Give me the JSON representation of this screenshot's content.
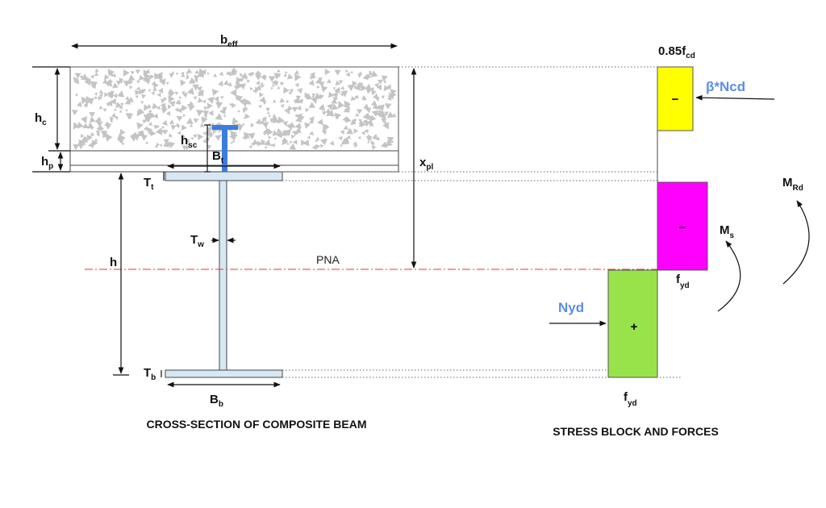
{
  "colors": {
    "concrete_block": "#ffff00",
    "steel_compression_block": "#ff00ff",
    "steel_tension_block": "#98e34a",
    "shear_connector": "#3b7ddd",
    "steel_section": "#d6e8f4",
    "pna_line": "#e53935",
    "force_labels": "#5b8ee6"
  },
  "cross_section": {
    "caption": "CROSS-SECTION OF COMPOSITE BEAM",
    "beff": {
      "main": "b",
      "sub": "eff"
    },
    "hc": {
      "main": "h",
      "sub": "c"
    },
    "hp": {
      "main": "h",
      "sub": "p"
    },
    "hsc": {
      "main": "h",
      "sub": "sc"
    },
    "Bt": {
      "main": "B",
      "sub": "t"
    },
    "Tt": {
      "main": "T",
      "sub": "t"
    },
    "h": "h",
    "Tw": {
      "main": "T",
      "sub": "w"
    },
    "pna": "PNA",
    "xpl": {
      "main": "x",
      "sub": "pl"
    },
    "Tb": {
      "main": "T",
      "sub": "b"
    },
    "Bb": {
      "main": "B",
      "sub": "b"
    }
  },
  "stress_block": {
    "caption": "STRESS BLOCK AND FORCES",
    "concrete_stress": {
      "main": "0.85f",
      "sub": "cd"
    },
    "concrete_force": "β*Ncd",
    "concrete_sign": "−",
    "steel_comp_sign": "−",
    "steel_tension_sign": "+",
    "fyd_top": {
      "main": "f",
      "sub": "yd"
    },
    "fyd_bottom": {
      "main": "f",
      "sub": "yd"
    },
    "steel_force": "Nyd",
    "Ms": {
      "main": "M",
      "sub": "s"
    },
    "MRd": {
      "main": "M",
      "sub": "Rd"
    }
  }
}
